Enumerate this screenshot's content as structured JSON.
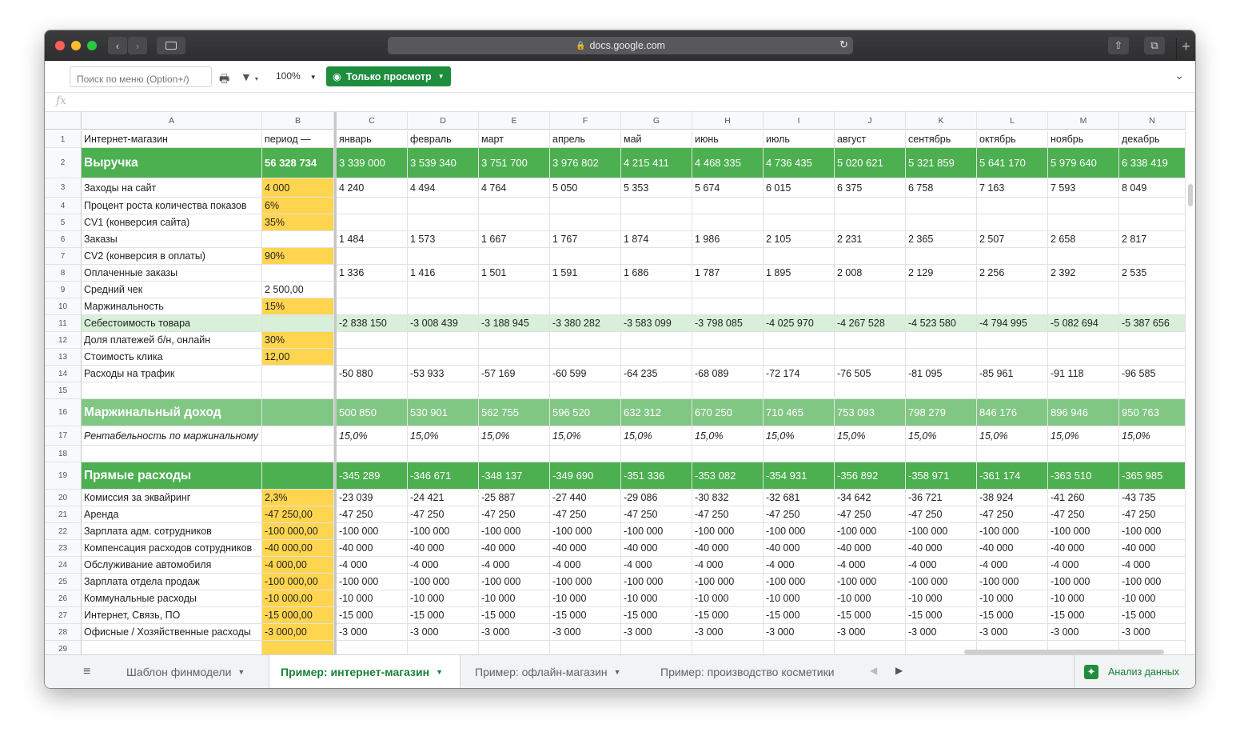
{
  "browser": {
    "url": "docs.google.com"
  },
  "toolbar": {
    "search_placeholder": "Поиск по меню (Option+/)",
    "zoom": "100%",
    "view_mode": "Только просмотр"
  },
  "formula_bar": {
    "fx": "fx"
  },
  "columns": [
    "A",
    "B",
    "C",
    "D",
    "E",
    "F",
    "G",
    "H",
    "I",
    "J",
    "K",
    "L",
    "M",
    "N"
  ],
  "rows": [
    {
      "n": "1",
      "style": "plain",
      "label": "Интернет-магазин",
      "param": "период —",
      "values": [
        "январь",
        "февраль",
        "март",
        "апрель",
        "май",
        "июнь",
        "июль",
        "август",
        "сентябрь",
        "октябрь",
        "ноябрь",
        "декабрь"
      ]
    },
    {
      "n": "2",
      "style": "rev",
      "label": "Выручка",
      "param": "56 328 734",
      "values": [
        "3 339 000",
        "3 539 340",
        "3 751 700",
        "3 976 802",
        "4 215 411",
        "4 468 335",
        "4 736 435",
        "5 020 621",
        "5 321 859",
        "5 641 170",
        "5 979 640",
        "6 338 419"
      ]
    },
    {
      "n": "3",
      "style": "plain",
      "label": "Заходы на сайт",
      "param": "4 000",
      "yellow": true,
      "values": [
        "4 240",
        "4 494",
        "4 764",
        "5 050",
        "5 353",
        "5 674",
        "6 015",
        "6 375",
        "6 758",
        "7 163",
        "7 593",
        "8 049"
      ]
    },
    {
      "n": "4",
      "style": "plain",
      "label": "Процент роста количества показов",
      "param": "6%",
      "yellow": true,
      "values": [
        "",
        "",
        "",
        "",
        "",
        "",
        "",
        "",
        "",
        "",
        "",
        ""
      ]
    },
    {
      "n": "5",
      "style": "plain",
      "label": "CV1 (конверсия сайта)",
      "param": "35%",
      "yellow": true,
      "values": [
        "",
        "",
        "",
        "",
        "",
        "",
        "",
        "",
        "",
        "",
        "",
        ""
      ]
    },
    {
      "n": "6",
      "style": "plain",
      "label": "Заказы",
      "param": "",
      "values": [
        "1 484",
        "1 573",
        "1 667",
        "1 767",
        "1 874",
        "1 986",
        "2 105",
        "2 231",
        "2 365",
        "2 507",
        "2 658",
        "2 817"
      ]
    },
    {
      "n": "7",
      "style": "plain",
      "label": "CV2 (конверсия в оплаты)",
      "param": "90%",
      "yellow": true,
      "values": [
        "",
        "",
        "",
        "",
        "",
        "",
        "",
        "",
        "",
        "",
        "",
        ""
      ]
    },
    {
      "n": "8",
      "style": "plain",
      "label": "Оплаченные заказы",
      "param": "",
      "values": [
        "1 336",
        "1 416",
        "1 501",
        "1 591",
        "1 686",
        "1 787",
        "1 895",
        "2 008",
        "2 129",
        "2 256",
        "2 392",
        "2 535"
      ]
    },
    {
      "n": "9",
      "style": "plain",
      "label": "Средний чек",
      "param": "2 500,00",
      "values": [
        "",
        "",
        "",
        "",
        "",
        "",
        "",
        "",
        "",
        "",
        "",
        ""
      ]
    },
    {
      "n": "10",
      "style": "plain",
      "label": "Маржинальность",
      "param": "15%",
      "yellow": true,
      "values": [
        "",
        "",
        "",
        "",
        "",
        "",
        "",
        "",
        "",
        "",
        "",
        ""
      ]
    },
    {
      "n": "11",
      "style": "cogs",
      "label": "Себестоимость товара",
      "param": "",
      "values": [
        "-2 838 150",
        "-3 008 439",
        "-3 188 945",
        "-3 380 282",
        "-3 583 099",
        "-3 798 085",
        "-4 025 970",
        "-4 267 528",
        "-4 523 580",
        "-4 794 995",
        "-5 082 694",
        "-5 387 656"
      ]
    },
    {
      "n": "12",
      "style": "plain",
      "label": "Доля платежей б/н, онлайн",
      "param": "30%",
      "yellow": true,
      "values": [
        "",
        "",
        "",
        "",
        "",
        "",
        "",
        "",
        "",
        "",
        "",
        ""
      ]
    },
    {
      "n": "13",
      "style": "plain",
      "label": "Стоимость клика",
      "param": "12,00",
      "yellow": true,
      "values": [
        "",
        "",
        "",
        "",
        "",
        "",
        "",
        "",
        "",
        "",
        "",
        ""
      ]
    },
    {
      "n": "14",
      "style": "plain",
      "label": "Расходы на трафик",
      "param": "",
      "values": [
        "-50 880",
        "-53 933",
        "-57 169",
        "-60 599",
        "-64 235",
        "-68 089",
        "-72 174",
        "-76 505",
        "-81 095",
        "-85 961",
        "-91 118",
        "-96 585"
      ]
    },
    {
      "n": "15",
      "style": "plain",
      "label": "",
      "param": "",
      "values": [
        "",
        "",
        "",
        "",
        "",
        "",
        "",
        "",
        "",
        "",
        "",
        ""
      ]
    },
    {
      "n": "16",
      "style": "marg",
      "label": "Маржинальный доход",
      "param": "",
      "values": [
        "500 850",
        "530 901",
        "562 755",
        "596 520",
        "632 312",
        "670 250",
        "710 465",
        "753 093",
        "798 279",
        "846 176",
        "896 946",
        "950 763"
      ]
    },
    {
      "n": "17",
      "style": "ital",
      "label": "Рентабельность по маржинальному доходу, %",
      "param": "",
      "values": [
        "15,0%",
        "15,0%",
        "15,0%",
        "15,0%",
        "15,0%",
        "15,0%",
        "15,0%",
        "15,0%",
        "15,0%",
        "15,0%",
        "15,0%",
        "15,0%"
      ]
    },
    {
      "n": "18",
      "style": "plain",
      "label": "",
      "param": "",
      "values": [
        "",
        "",
        "",
        "",
        "",
        "",
        "",
        "",
        "",
        "",
        "",
        ""
      ]
    },
    {
      "n": "19",
      "style": "pr",
      "label": "Прямые расходы",
      "param": "",
      "values": [
        "-345 289",
        "-346 671",
        "-348 137",
        "-349 690",
        "-351 336",
        "-353 082",
        "-354 931",
        "-356 892",
        "-358 971",
        "-361 174",
        "-363 510",
        "-365 985"
      ]
    },
    {
      "n": "20",
      "style": "plain",
      "label": "Комиссия за эквайринг",
      "param": "2,3%",
      "yellow": true,
      "values": [
        "-23 039",
        "-24 421",
        "-25 887",
        "-27 440",
        "-29 086",
        "-30 832",
        "-32 681",
        "-34 642",
        "-36 721",
        "-38 924",
        "-41 260",
        "-43 735"
      ]
    },
    {
      "n": "21",
      "style": "plain",
      "label": "Аренда",
      "param": "-47 250,00",
      "yellow": true,
      "values": [
        "-47 250",
        "-47 250",
        "-47 250",
        "-47 250",
        "-47 250",
        "-47 250",
        "-47 250",
        "-47 250",
        "-47 250",
        "-47 250",
        "-47 250",
        "-47 250"
      ]
    },
    {
      "n": "22",
      "style": "plain",
      "label": "Зарплата адм. сотрудников",
      "param": "-100 000,00",
      "yellow": true,
      "values": [
        "-100 000",
        "-100 000",
        "-100 000",
        "-100 000",
        "-100 000",
        "-100 000",
        "-100 000",
        "-100 000",
        "-100 000",
        "-100 000",
        "-100 000",
        "-100 000"
      ]
    },
    {
      "n": "23",
      "style": "plain",
      "label": "Компенсация расходов сотрудников",
      "param": "-40 000,00",
      "yellow": true,
      "values": [
        "-40 000",
        "-40 000",
        "-40 000",
        "-40 000",
        "-40 000",
        "-40 000",
        "-40 000",
        "-40 000",
        "-40 000",
        "-40 000",
        "-40 000",
        "-40 000"
      ]
    },
    {
      "n": "24",
      "style": "plain",
      "label": "Обслуживание автомобиля",
      "param": "-4 000,00",
      "yellow": true,
      "values": [
        "-4 000",
        "-4 000",
        "-4 000",
        "-4 000",
        "-4 000",
        "-4 000",
        "-4 000",
        "-4 000",
        "-4 000",
        "-4 000",
        "-4 000",
        "-4 000"
      ]
    },
    {
      "n": "25",
      "style": "plain",
      "label": "Зарплата отдела продаж",
      "param": "-100 000,00",
      "yellow": true,
      "values": [
        "-100 000",
        "-100 000",
        "-100 000",
        "-100 000",
        "-100 000",
        "-100 000",
        "-100 000",
        "-100 000",
        "-100 000",
        "-100 000",
        "-100 000",
        "-100 000"
      ]
    },
    {
      "n": "26",
      "style": "plain",
      "label": "Коммунальные расходы",
      "param": "-10 000,00",
      "yellow": true,
      "values": [
        "-10 000",
        "-10 000",
        "-10 000",
        "-10 000",
        "-10 000",
        "-10 000",
        "-10 000",
        "-10 000",
        "-10 000",
        "-10 000",
        "-10 000",
        "-10 000"
      ]
    },
    {
      "n": "27",
      "style": "plain",
      "label": "Интернет, Связь, ПО",
      "param": "-15 000,00",
      "yellow": true,
      "values": [
        "-15 000",
        "-15 000",
        "-15 000",
        "-15 000",
        "-15 000",
        "-15 000",
        "-15 000",
        "-15 000",
        "-15 000",
        "-15 000",
        "-15 000",
        "-15 000"
      ]
    },
    {
      "n": "28",
      "style": "plain",
      "label": "Офисные / Хозяйственные расходы",
      "param": "-3 000,00",
      "yellow": true,
      "values": [
        "-3 000",
        "-3 000",
        "-3 000",
        "-3 000",
        "-3 000",
        "-3 000",
        "-3 000",
        "-3 000",
        "-3 000",
        "-3 000",
        "-3 000",
        "-3 000"
      ]
    },
    {
      "n": "29",
      "style": "plain",
      "label": "",
      "param": "",
      "yellow": true,
      "values": [
        "",
        "",
        "",
        "",
        "",
        "",
        "",
        "",
        "",
        "",
        "",
        ""
      ]
    }
  ],
  "sheet_tabs": [
    {
      "label": "Шаблон финмодели",
      "active": false
    },
    {
      "label": "Пример: интернет-магазин",
      "active": true
    },
    {
      "label": "Пример: офлайн-магазин",
      "active": false
    },
    {
      "label": "Пример: производство косметики",
      "active": false
    }
  ],
  "explore_label": "Анализ данных",
  "colors": {
    "accent_green": "#1e8e3e",
    "revenue_row": "#4caf50",
    "margin_row": "#81c784",
    "cogs_row": "#d8efd9",
    "input_yellow": "#ffd54f"
  }
}
